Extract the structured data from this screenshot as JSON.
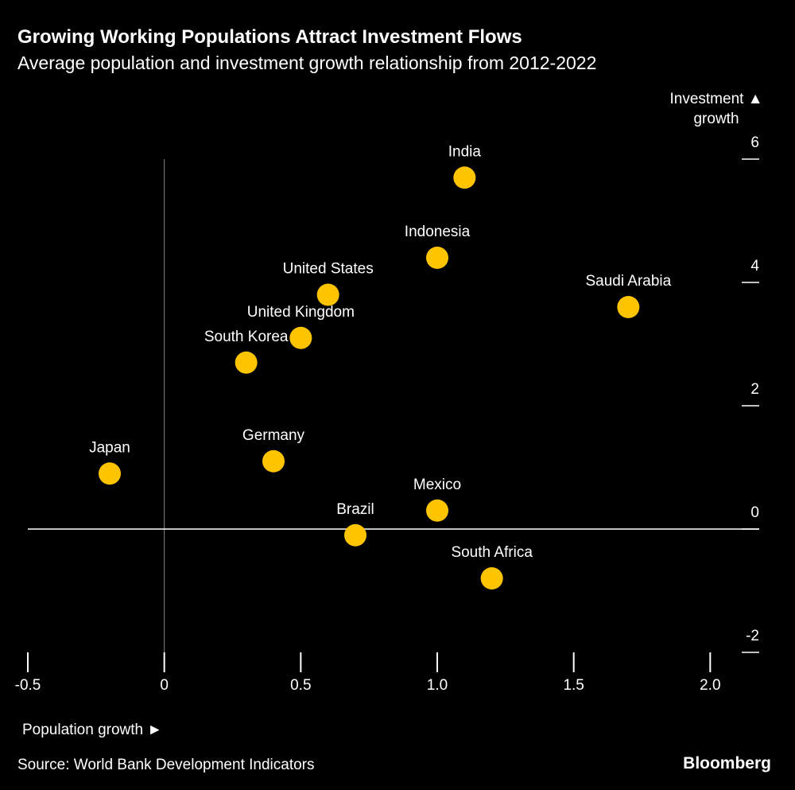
{
  "chart_data": {
    "type": "scatter",
    "title": "Growing Working Populations Attract Investment Flows",
    "subtitle": "Average population and investment growth relationship from 2012-2022",
    "x_label": "Population growth ►",
    "y_label": "Investment ▲ growth",
    "source": "Source: World Bank Development Indicators",
    "brand": "Bloomberg",
    "xlim": [
      -0.5,
      2.2
    ],
    "ylim": [
      -2,
      6
    ],
    "xticks": [
      -0.5,
      0,
      0.5,
      {
        "value": 1,
        "label": "1.0"
      },
      1.5,
      {
        "value": 2,
        "label": "2.0"
      }
    ],
    "yticks": [
      -2,
      0,
      2,
      4,
      6
    ],
    "series": [
      {
        "color": "#ffc400",
        "labels": [
          "India",
          "Indonesia",
          "United States",
          "Saudi Arabia",
          "United Kingdom",
          "South Korea",
          "Germany",
          "Japan",
          "Mexico",
          "Brazil",
          "South Africa"
        ],
        "x": [
          1.1,
          1.0,
          0.6,
          1.7,
          0.5,
          0.3,
          0.4,
          -0.2,
          1.0,
          0.7,
          1.2
        ],
        "values": [
          5.7,
          4.4,
          3.8,
          3.6,
          3.1,
          2.7,
          1.1,
          0.9,
          0.3,
          -0.1,
          -0.8
        ]
      }
    ]
  }
}
